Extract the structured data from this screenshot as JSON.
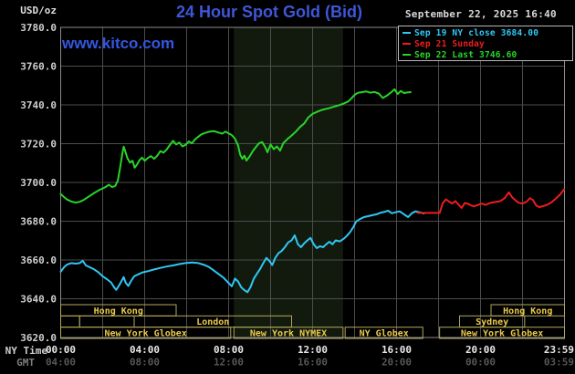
{
  "header": {
    "unit": "USD/oz",
    "title": "24 Hour Spot Gold (Bid)",
    "datetime": "September 22, 2025 16:40",
    "watermark": "www.kitco.com"
  },
  "axis": {
    "ny_label": "NY Time",
    "gmt_label": "GMT"
  },
  "colors": {
    "background": "#000000",
    "grid": "#4c4c4c",
    "plot_border": "#8c8c8c",
    "nymex_band": "#121a0e",
    "session_border": "#b2a65c",
    "session_text": "#eccb4e",
    "title_blue": "#3e57d8",
    "cyan": "#2fc7f3",
    "red": "#ee1c1c",
    "green": "#28d428"
  },
  "chart_data": {
    "type": "line",
    "title": "24 Hour Spot Gold (Bid)",
    "ylabel": "USD/oz",
    "ylim": [
      3620,
      3780
    ],
    "yticks": [
      "3780.0",
      "3760.0",
      "3740.0",
      "3720.0",
      "3700.0",
      "3680.0",
      "3660.0",
      "3640.0",
      "3620.0"
    ],
    "x_hours_lim": [
      0,
      24
    ],
    "grid_hours": [
      2,
      4,
      6,
      8,
      10,
      12,
      14,
      16,
      18,
      20,
      22
    ],
    "xticks": [
      {
        "h": 0,
        "ny": "00:00",
        "gmt": "04:00"
      },
      {
        "h": 4,
        "ny": "04:00",
        "gmt": "08:00"
      },
      {
        "h": 8,
        "ny": "08:00",
        "gmt": "12:00"
      },
      {
        "h": 12,
        "ny": "12:00",
        "gmt": "16:00"
      },
      {
        "h": 16,
        "ny": "16:00",
        "gmt": "20:00"
      },
      {
        "h": 20,
        "ny": "20:00",
        "gmt": "00:00"
      },
      {
        "h": 23.983,
        "ny": "23:59",
        "gmt": "03:59"
      }
    ],
    "nymex_band_hours": [
      8.25,
      13.45
    ],
    "legend": [
      {
        "label": "Sep 19 NY close 3684.00",
        "color": "#2fc7f3"
      },
      {
        "label": "Sep 21 Sunday",
        "color": "#ee1c1c"
      },
      {
        "label": "Sep 22 Last 3746.60",
        "color": "#28d428"
      }
    ],
    "sessions": [
      {
        "row": 0,
        "label": "Hong Kong",
        "start": 0,
        "end": 5.5
      },
      {
        "row": 0,
        "label": "Hong Kong",
        "start": 20.5,
        "end": 24
      },
      {
        "row": 1,
        "label": "",
        "start": 0,
        "end": 0.9
      },
      {
        "row": 1,
        "label": "",
        "start": 0.9,
        "end": 3.5
      },
      {
        "row": 1,
        "label": "London",
        "start": 3.5,
        "end": 11
      },
      {
        "row": 1,
        "label": "Sydney",
        "start": 19,
        "end": 22.1
      },
      {
        "row": 2,
        "label": "New York Globex",
        "start": 0,
        "end": 8.1
      },
      {
        "row": 2,
        "label": "New York NYMEX",
        "start": 8.25,
        "end": 13.45
      },
      {
        "row": 2,
        "label": "NY Globex",
        "start": 13.55,
        "end": 17.25
      },
      {
        "row": 2,
        "label": "New York Globex",
        "start": 18.05,
        "end": 24
      }
    ],
    "series": [
      {
        "name": "Sep 19 NY close",
        "color": "#2fc7f3",
        "points": [
          [
            0,
            3654
          ],
          [
            0.15,
            3656.2
          ],
          [
            0.3,
            3657.6
          ],
          [
            0.5,
            3658.4
          ],
          [
            0.7,
            3658.1
          ],
          [
            0.9,
            3658.4
          ],
          [
            1.05,
            3659.6
          ],
          [
            1.2,
            3657.2
          ],
          [
            1.4,
            3656.2
          ],
          [
            1.6,
            3655.1
          ],
          [
            1.8,
            3653.6
          ],
          [
            2,
            3651.6
          ],
          [
            2.2,
            3650.1
          ],
          [
            2.4,
            3648.4
          ],
          [
            2.55,
            3645.8
          ],
          [
            2.65,
            3644.6
          ],
          [
            2.78,
            3646.8
          ],
          [
            2.9,
            3649.2
          ],
          [
            3,
            3651.2
          ],
          [
            3.1,
            3648.2
          ],
          [
            3.22,
            3646.6
          ],
          [
            3.35,
            3649.2
          ],
          [
            3.5,
            3651.6
          ],
          [
            3.7,
            3652.6
          ],
          [
            3.9,
            3653.6
          ],
          [
            4.15,
            3654.2
          ],
          [
            4.45,
            3655.1
          ],
          [
            4.75,
            3655.9
          ],
          [
            5.05,
            3656.6
          ],
          [
            5.35,
            3657.2
          ],
          [
            5.65,
            3657.9
          ],
          [
            5.95,
            3658.4
          ],
          [
            6.25,
            3658.7
          ],
          [
            6.55,
            3658.4
          ],
          [
            6.85,
            3657.4
          ],
          [
            7.05,
            3656.4
          ],
          [
            7.25,
            3654.9
          ],
          [
            7.5,
            3652.9
          ],
          [
            7.75,
            3650.9
          ],
          [
            7.95,
            3648.6
          ],
          [
            8.15,
            3646.4
          ],
          [
            8.3,
            3650.4
          ],
          [
            8.45,
            3648.9
          ],
          [
            8.6,
            3645.9
          ],
          [
            8.75,
            3644.4
          ],
          [
            8.9,
            3643.4
          ],
          [
            9.05,
            3646.1
          ],
          [
            9.2,
            3650.4
          ],
          [
            9.35,
            3652.9
          ],
          [
            9.5,
            3655.4
          ],
          [
            9.65,
            3658.4
          ],
          [
            9.8,
            3661.1
          ],
          [
            9.95,
            3659.4
          ],
          [
            10.08,
            3657.4
          ],
          [
            10.22,
            3661.1
          ],
          [
            10.38,
            3663.6
          ],
          [
            10.52,
            3664.6
          ],
          [
            10.68,
            3666.6
          ],
          [
            10.84,
            3669.1
          ],
          [
            11,
            3670.1
          ],
          [
            11.15,
            3672.7
          ],
          [
            11.3,
            3668.1
          ],
          [
            11.45,
            3666.6
          ],
          [
            11.6,
            3668.6
          ],
          [
            11.75,
            3670.1
          ],
          [
            11.9,
            3671.4
          ],
          [
            12.05,
            3668.1
          ],
          [
            12.2,
            3666.1
          ],
          [
            12.35,
            3667.1
          ],
          [
            12.5,
            3666.6
          ],
          [
            12.65,
            3668.1
          ],
          [
            12.8,
            3669.4
          ],
          [
            12.95,
            3668.1
          ],
          [
            13.1,
            3670.1
          ],
          [
            13.3,
            3669.6
          ],
          [
            13.5,
            3671.1
          ],
          [
            13.65,
            3672.6
          ],
          [
            13.8,
            3674.6
          ],
          [
            13.95,
            3677.1
          ],
          [
            14.08,
            3679.9
          ],
          [
            14.25,
            3681.1
          ],
          [
            14.45,
            3682.1
          ],
          [
            14.65,
            3682.6
          ],
          [
            14.85,
            3683.1
          ],
          [
            15.05,
            3683.6
          ],
          [
            15.25,
            3684.4
          ],
          [
            15.45,
            3684.9
          ],
          [
            15.6,
            3685.4
          ],
          [
            15.78,
            3684.1
          ],
          [
            15.95,
            3684.6
          ],
          [
            16.15,
            3685.1
          ],
          [
            16.35,
            3683.6
          ],
          [
            16.55,
            3682.1
          ],
          [
            16.72,
            3684.1
          ],
          [
            16.9,
            3685.1
          ],
          [
            17.1,
            3684.6
          ],
          [
            17.3,
            3684
          ]
        ]
      },
      {
        "name": "Sep 21 Sunday",
        "color": "#ee1c1c",
        "points": [
          [
            17,
            3684.3
          ],
          [
            17.5,
            3684.3
          ],
          [
            18.05,
            3684.3
          ],
          [
            18.2,
            3689.3
          ],
          [
            18.35,
            3691.3
          ],
          [
            18.5,
            3690.1
          ],
          [
            18.65,
            3689.1
          ],
          [
            18.8,
            3690.4
          ],
          [
            18.95,
            3688.6
          ],
          [
            19.1,
            3686.8
          ],
          [
            19.25,
            3689.4
          ],
          [
            19.4,
            3689
          ],
          [
            19.55,
            3688.1
          ],
          [
            19.7,
            3687.7
          ],
          [
            19.85,
            3688.3
          ],
          [
            20.05,
            3689.1
          ],
          [
            20.25,
            3688.4
          ],
          [
            20.45,
            3689.4
          ],
          [
            20.7,
            3689.9
          ],
          [
            20.95,
            3690.4
          ],
          [
            21.15,
            3691.9
          ],
          [
            21.35,
            3694.9
          ],
          [
            21.5,
            3692.4
          ],
          [
            21.65,
            3690.9
          ],
          [
            21.8,
            3689.6
          ],
          [
            22,
            3689.1
          ],
          [
            22.2,
            3690.1
          ],
          [
            22.35,
            3691.9
          ],
          [
            22.5,
            3690.9
          ],
          [
            22.65,
            3688.1
          ],
          [
            22.8,
            3687.3
          ],
          [
            23,
            3687.8
          ],
          [
            23.2,
            3688.6
          ],
          [
            23.4,
            3689.9
          ],
          [
            23.6,
            3691.8
          ],
          [
            23.8,
            3693.9
          ],
          [
            23.98,
            3696.4
          ]
        ]
      },
      {
        "name": "Sep 22 Last",
        "color": "#28d428",
        "points": [
          [
            0,
            3694
          ],
          [
            0.15,
            3692.5
          ],
          [
            0.3,
            3691.2
          ],
          [
            0.5,
            3690.2
          ],
          [
            0.7,
            3689.6
          ],
          [
            0.9,
            3690
          ],
          [
            1.1,
            3691
          ],
          [
            1.35,
            3692.8
          ],
          [
            1.6,
            3694.6
          ],
          [
            1.85,
            3696.2
          ],
          [
            2.1,
            3697.4
          ],
          [
            2.3,
            3698.8
          ],
          [
            2.45,
            3697.6
          ],
          [
            2.6,
            3698.2
          ],
          [
            2.72,
            3701
          ],
          [
            2.82,
            3707
          ],
          [
            2.92,
            3714
          ],
          [
            3,
            3718.5
          ],
          [
            3.08,
            3716
          ],
          [
            3.18,
            3712.5
          ],
          [
            3.3,
            3710.2
          ],
          [
            3.42,
            3711.2
          ],
          [
            3.52,
            3707.6
          ],
          [
            3.62,
            3709
          ],
          [
            3.75,
            3711.5
          ],
          [
            3.88,
            3712.8
          ],
          [
            4,
            3711.2
          ],
          [
            4.15,
            3712.6
          ],
          [
            4.3,
            3713.6
          ],
          [
            4.45,
            3712.2
          ],
          [
            4.6,
            3713.8
          ],
          [
            4.75,
            3716.2
          ],
          [
            4.9,
            3715.4
          ],
          [
            5.05,
            3717
          ],
          [
            5.2,
            3719.3
          ],
          [
            5.35,
            3721.5
          ],
          [
            5.5,
            3719.6
          ],
          [
            5.65,
            3720.6
          ],
          [
            5.8,
            3718.6
          ],
          [
            5.95,
            3719.4
          ],
          [
            6.1,
            3721.2
          ],
          [
            6.25,
            3720.2
          ],
          [
            6.4,
            3722.2
          ],
          [
            6.55,
            3723.6
          ],
          [
            6.7,
            3724.8
          ],
          [
            6.9,
            3725.6
          ],
          [
            7.1,
            3726.2
          ],
          [
            7.3,
            3726.5
          ],
          [
            7.5,
            3725.8
          ],
          [
            7.7,
            3725.2
          ],
          [
            7.85,
            3726.2
          ],
          [
            8,
            3725.3
          ],
          [
            8.15,
            3724.4
          ],
          [
            8.3,
            3722.6
          ],
          [
            8.45,
            3719
          ],
          [
            8.55,
            3714.4
          ],
          [
            8.65,
            3712.2
          ],
          [
            8.75,
            3713.8
          ],
          [
            8.85,
            3711.3
          ],
          [
            9,
            3713.4
          ],
          [
            9.15,
            3716.2
          ],
          [
            9.3,
            3718.3
          ],
          [
            9.45,
            3720.3
          ],
          [
            9.6,
            3720.8
          ],
          [
            9.75,
            3718
          ],
          [
            9.85,
            3715.6
          ],
          [
            10,
            3719.6
          ],
          [
            10.15,
            3717.2
          ],
          [
            10.3,
            3718.6
          ],
          [
            10.45,
            3716.4
          ],
          [
            10.6,
            3720.2
          ],
          [
            10.8,
            3722.4
          ],
          [
            11,
            3724.2
          ],
          [
            11.2,
            3726.2
          ],
          [
            11.4,
            3728.6
          ],
          [
            11.6,
            3730.4
          ],
          [
            11.8,
            3733.6
          ],
          [
            12,
            3735.4
          ],
          [
            12.25,
            3736.6
          ],
          [
            12.5,
            3737.6
          ],
          [
            12.75,
            3738.2
          ],
          [
            13,
            3739
          ],
          [
            13.25,
            3739.8
          ],
          [
            13.5,
            3740.8
          ],
          [
            13.7,
            3741.8
          ],
          [
            13.85,
            3743.4
          ],
          [
            14,
            3745.2
          ],
          [
            14.15,
            3746.2
          ],
          [
            14.35,
            3746.6
          ],
          [
            14.55,
            3746.9
          ],
          [
            14.75,
            3746.3
          ],
          [
            14.95,
            3746.7
          ],
          [
            15.15,
            3745.9
          ],
          [
            15.35,
            3743.6
          ],
          [
            15.55,
            3744.9
          ],
          [
            15.75,
            3746.6
          ],
          [
            15.9,
            3748.1
          ],
          [
            16.05,
            3745.6
          ],
          [
            16.2,
            3747.2
          ],
          [
            16.35,
            3746.1
          ],
          [
            16.5,
            3746.4
          ],
          [
            16.67,
            3746.6
          ]
        ]
      }
    ]
  }
}
